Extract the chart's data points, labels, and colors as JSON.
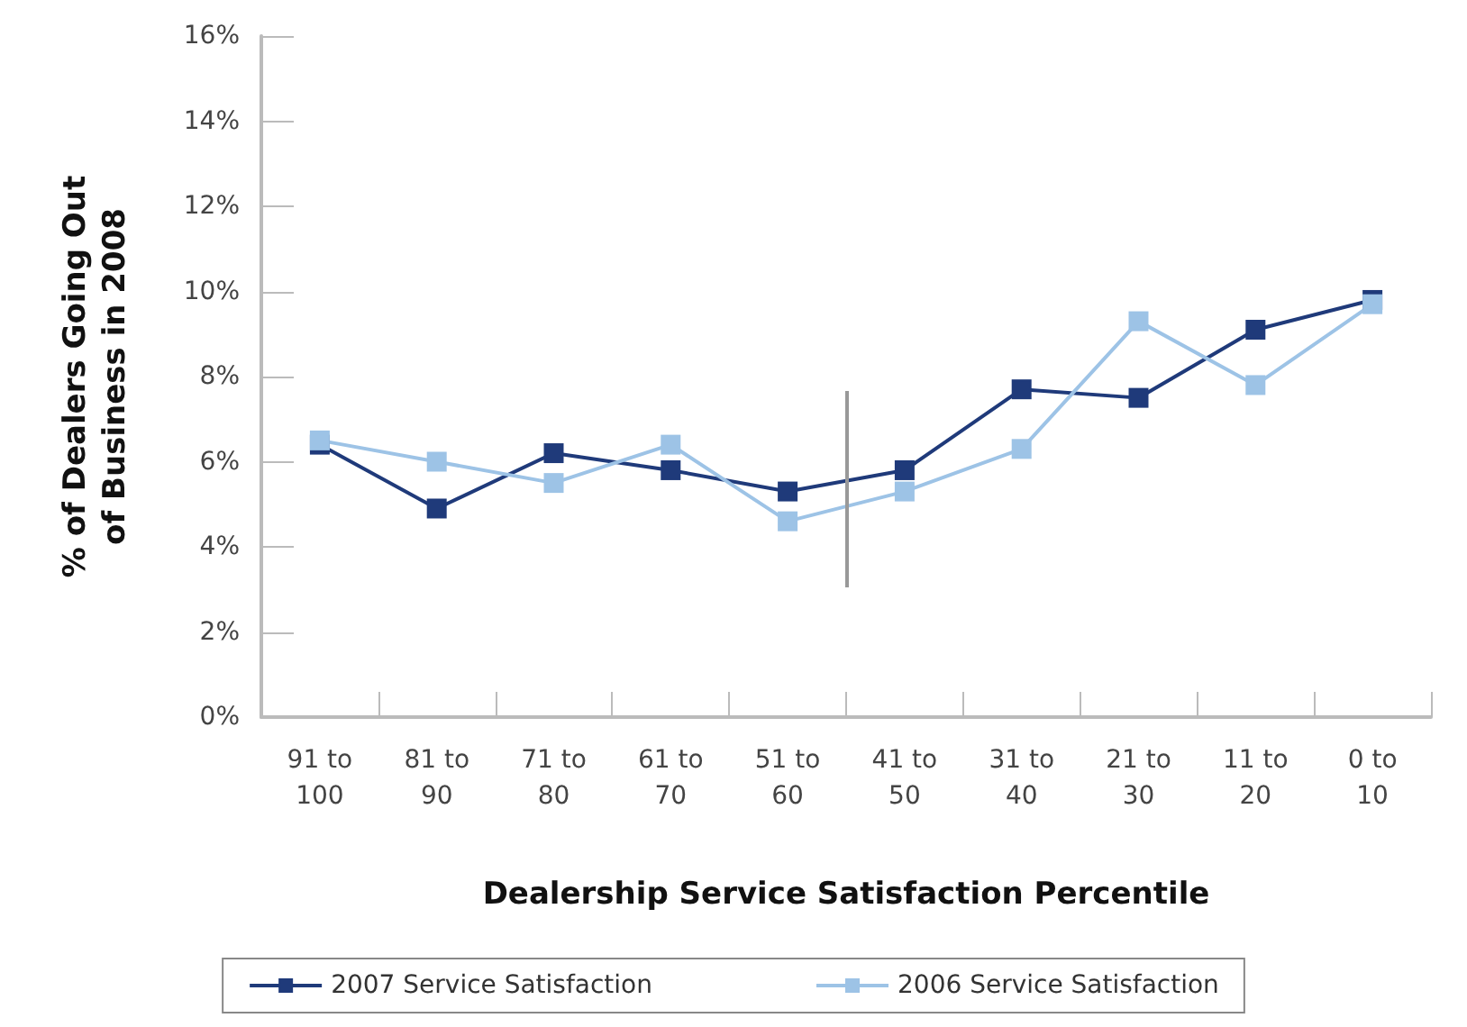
{
  "chart_data": {
    "type": "line",
    "xlabel": "Dealership Service Satisfaction Percentile",
    "ylabel": "% of Dealers Going Out\nof Business in 2008",
    "categories": [
      "91 to\n100",
      "81 to\n90",
      "71 to\n80",
      "61 to\n70",
      "51 to\n60",
      "41 to\n50",
      "31 to\n40",
      "21 to\n30",
      "11 to\n20",
      "0 to\n10"
    ],
    "series": [
      {
        "name": "2007 Service Satisfaction",
        "color": "#1f3a7a",
        "values": [
          6.4,
          4.9,
          6.2,
          5.8,
          5.3,
          5.8,
          7.7,
          7.5,
          9.1,
          9.8
        ]
      },
      {
        "name": "2006 Service Satisfaction",
        "color": "#9dc3e6",
        "values": [
          6.5,
          6.0,
          5.5,
          6.4,
          4.6,
          5.3,
          6.3,
          9.3,
          7.8,
          9.7
        ]
      }
    ],
    "ylim": [
      0,
      16
    ],
    "yticks": [
      {
        "value": 0,
        "label": "0%"
      },
      {
        "value": 2,
        "label": "2%"
      },
      {
        "value": 4,
        "label": "4%"
      },
      {
        "value": 6,
        "label": "6%"
      },
      {
        "value": 8,
        "label": "8%"
      },
      {
        "value": 10,
        "label": "10%"
      },
      {
        "value": 12,
        "label": "12%"
      },
      {
        "value": 14,
        "label": "14%"
      },
      {
        "value": 16,
        "label": "16%"
      }
    ],
    "marker": "square",
    "legend": "bottom",
    "grid": false
  }
}
